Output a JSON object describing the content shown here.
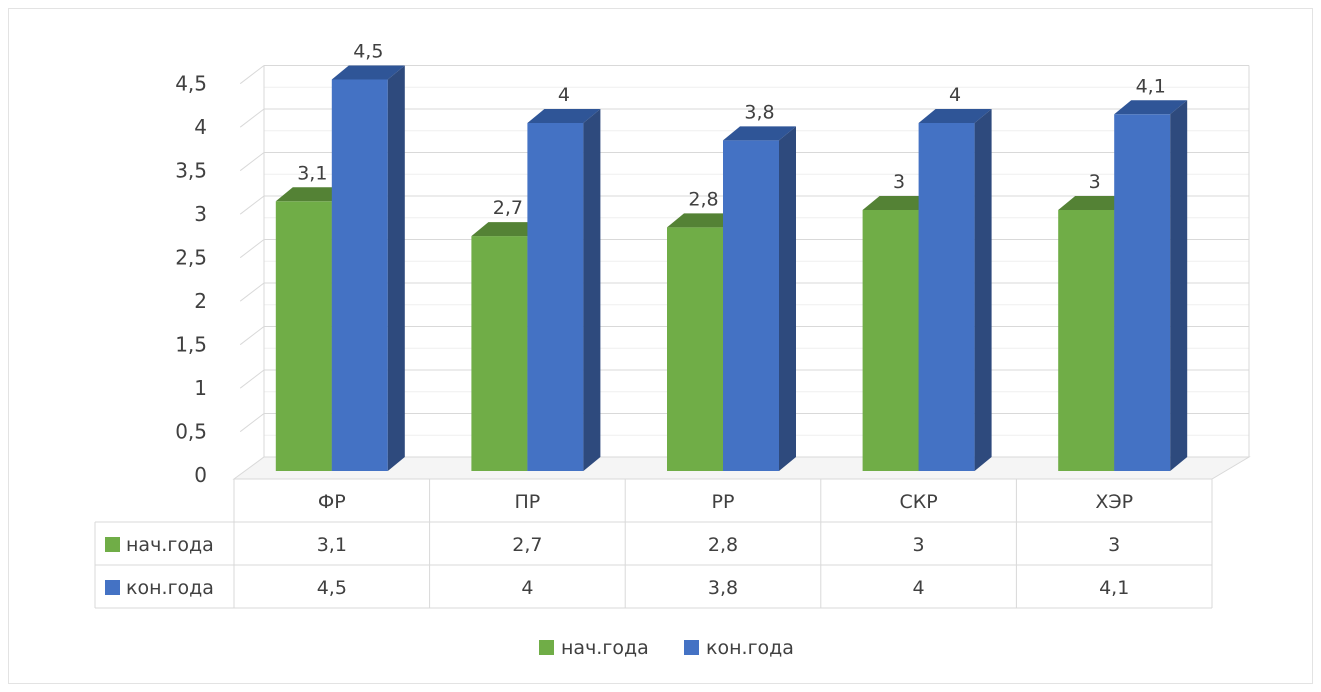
{
  "chart_data": {
    "type": "bar",
    "categories": [
      "ФР",
      "ПР",
      "РР",
      "СКР",
      "ХЭР"
    ],
    "series": [
      {
        "name": "нач.года",
        "values": [
          3.1,
          2.7,
          2.8,
          3,
          3
        ],
        "labels": [
          "3,1",
          "2,7",
          "2,8",
          "3",
          "3"
        ],
        "color": "#70AD47",
        "top_color": "#548235",
        "side_color": "#4E7A32"
      },
      {
        "name": "кон.года",
        "values": [
          4.5,
          4,
          3.8,
          4,
          4.1
        ],
        "labels": [
          "4,5",
          "4",
          "3,8",
          "4",
          "4,1"
        ],
        "color": "#4472C4",
        "top_color": "#2F5597",
        "side_color": "#2E4A7D"
      }
    ],
    "yticks": [
      0,
      0.5,
      1,
      1.5,
      2,
      2.5,
      3,
      3.5,
      4,
      4.5
    ],
    "ytick_labels": [
      "0",
      "0,5",
      "1",
      "1,5",
      "2",
      "2,5",
      "3",
      "3,5",
      "4",
      "4,5"
    ],
    "ylim": [
      0,
      4.5
    ],
    "grid": true,
    "data_table": true,
    "legend": "bottom",
    "title": "",
    "xlabel": "",
    "ylabel": ""
  }
}
